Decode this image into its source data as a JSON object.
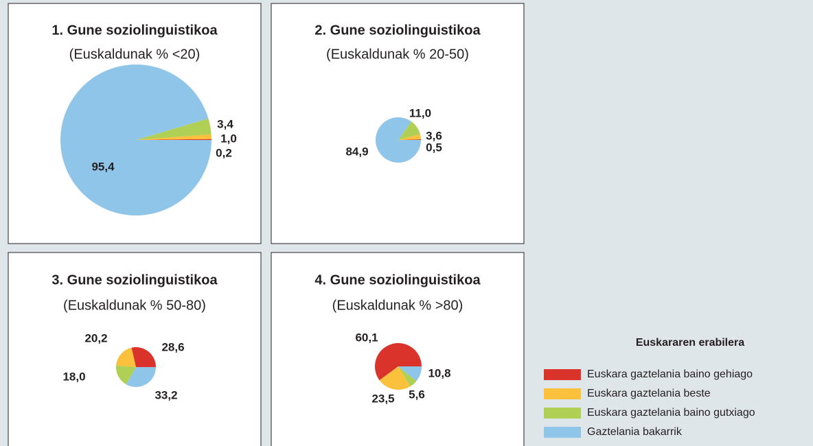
{
  "chart_data": [
    {
      "type": "pie",
      "title": "1. Gune soziolinguistikoa",
      "subtitle": "(Euskaldunak % <20)",
      "values": [
        0.2,
        1.0,
        3.4,
        95.4
      ],
      "value_labels": [
        "0,2",
        "1,0",
        "3,4",
        "95,4"
      ]
    },
    {
      "type": "pie",
      "title": "2. Gune soziolinguistikoa",
      "subtitle": "(Euskaldunak % 20-50)",
      "values": [
        0.5,
        3.6,
        11.0,
        84.9
      ],
      "value_labels": [
        "0,5",
        "3,6",
        "11,0",
        "84,9"
      ]
    },
    {
      "type": "pie",
      "title": "3. Gune soziolinguistikoa",
      "subtitle": "(Euskaldunak % 50-80)",
      "values": [
        28.6,
        20.2,
        18.0,
        33.2
      ],
      "value_labels": [
        "28,6",
        "20,2",
        "18,0",
        "33,2"
      ]
    },
    {
      "type": "pie",
      "title": "4. Gune soziolinguistikoa",
      "subtitle": "(Euskaldunak % >80)",
      "values": [
        60.1,
        23.5,
        5.6,
        10.8
      ],
      "value_labels": [
        "60,1",
        "23,5",
        "5,6",
        "10,8"
      ]
    }
  ],
  "legend": {
    "title": "Euskararen erabilera",
    "categories": [
      "Euskara gaztelania baino gehiago",
      "Euskara gaztelania beste",
      "Euskara gaztelania baino gutxiago",
      "Gaztelania bakarrik"
    ],
    "colors": [
      "#d9332b",
      "#fbc03c",
      "#b0cf55",
      "#90c5ea"
    ]
  }
}
